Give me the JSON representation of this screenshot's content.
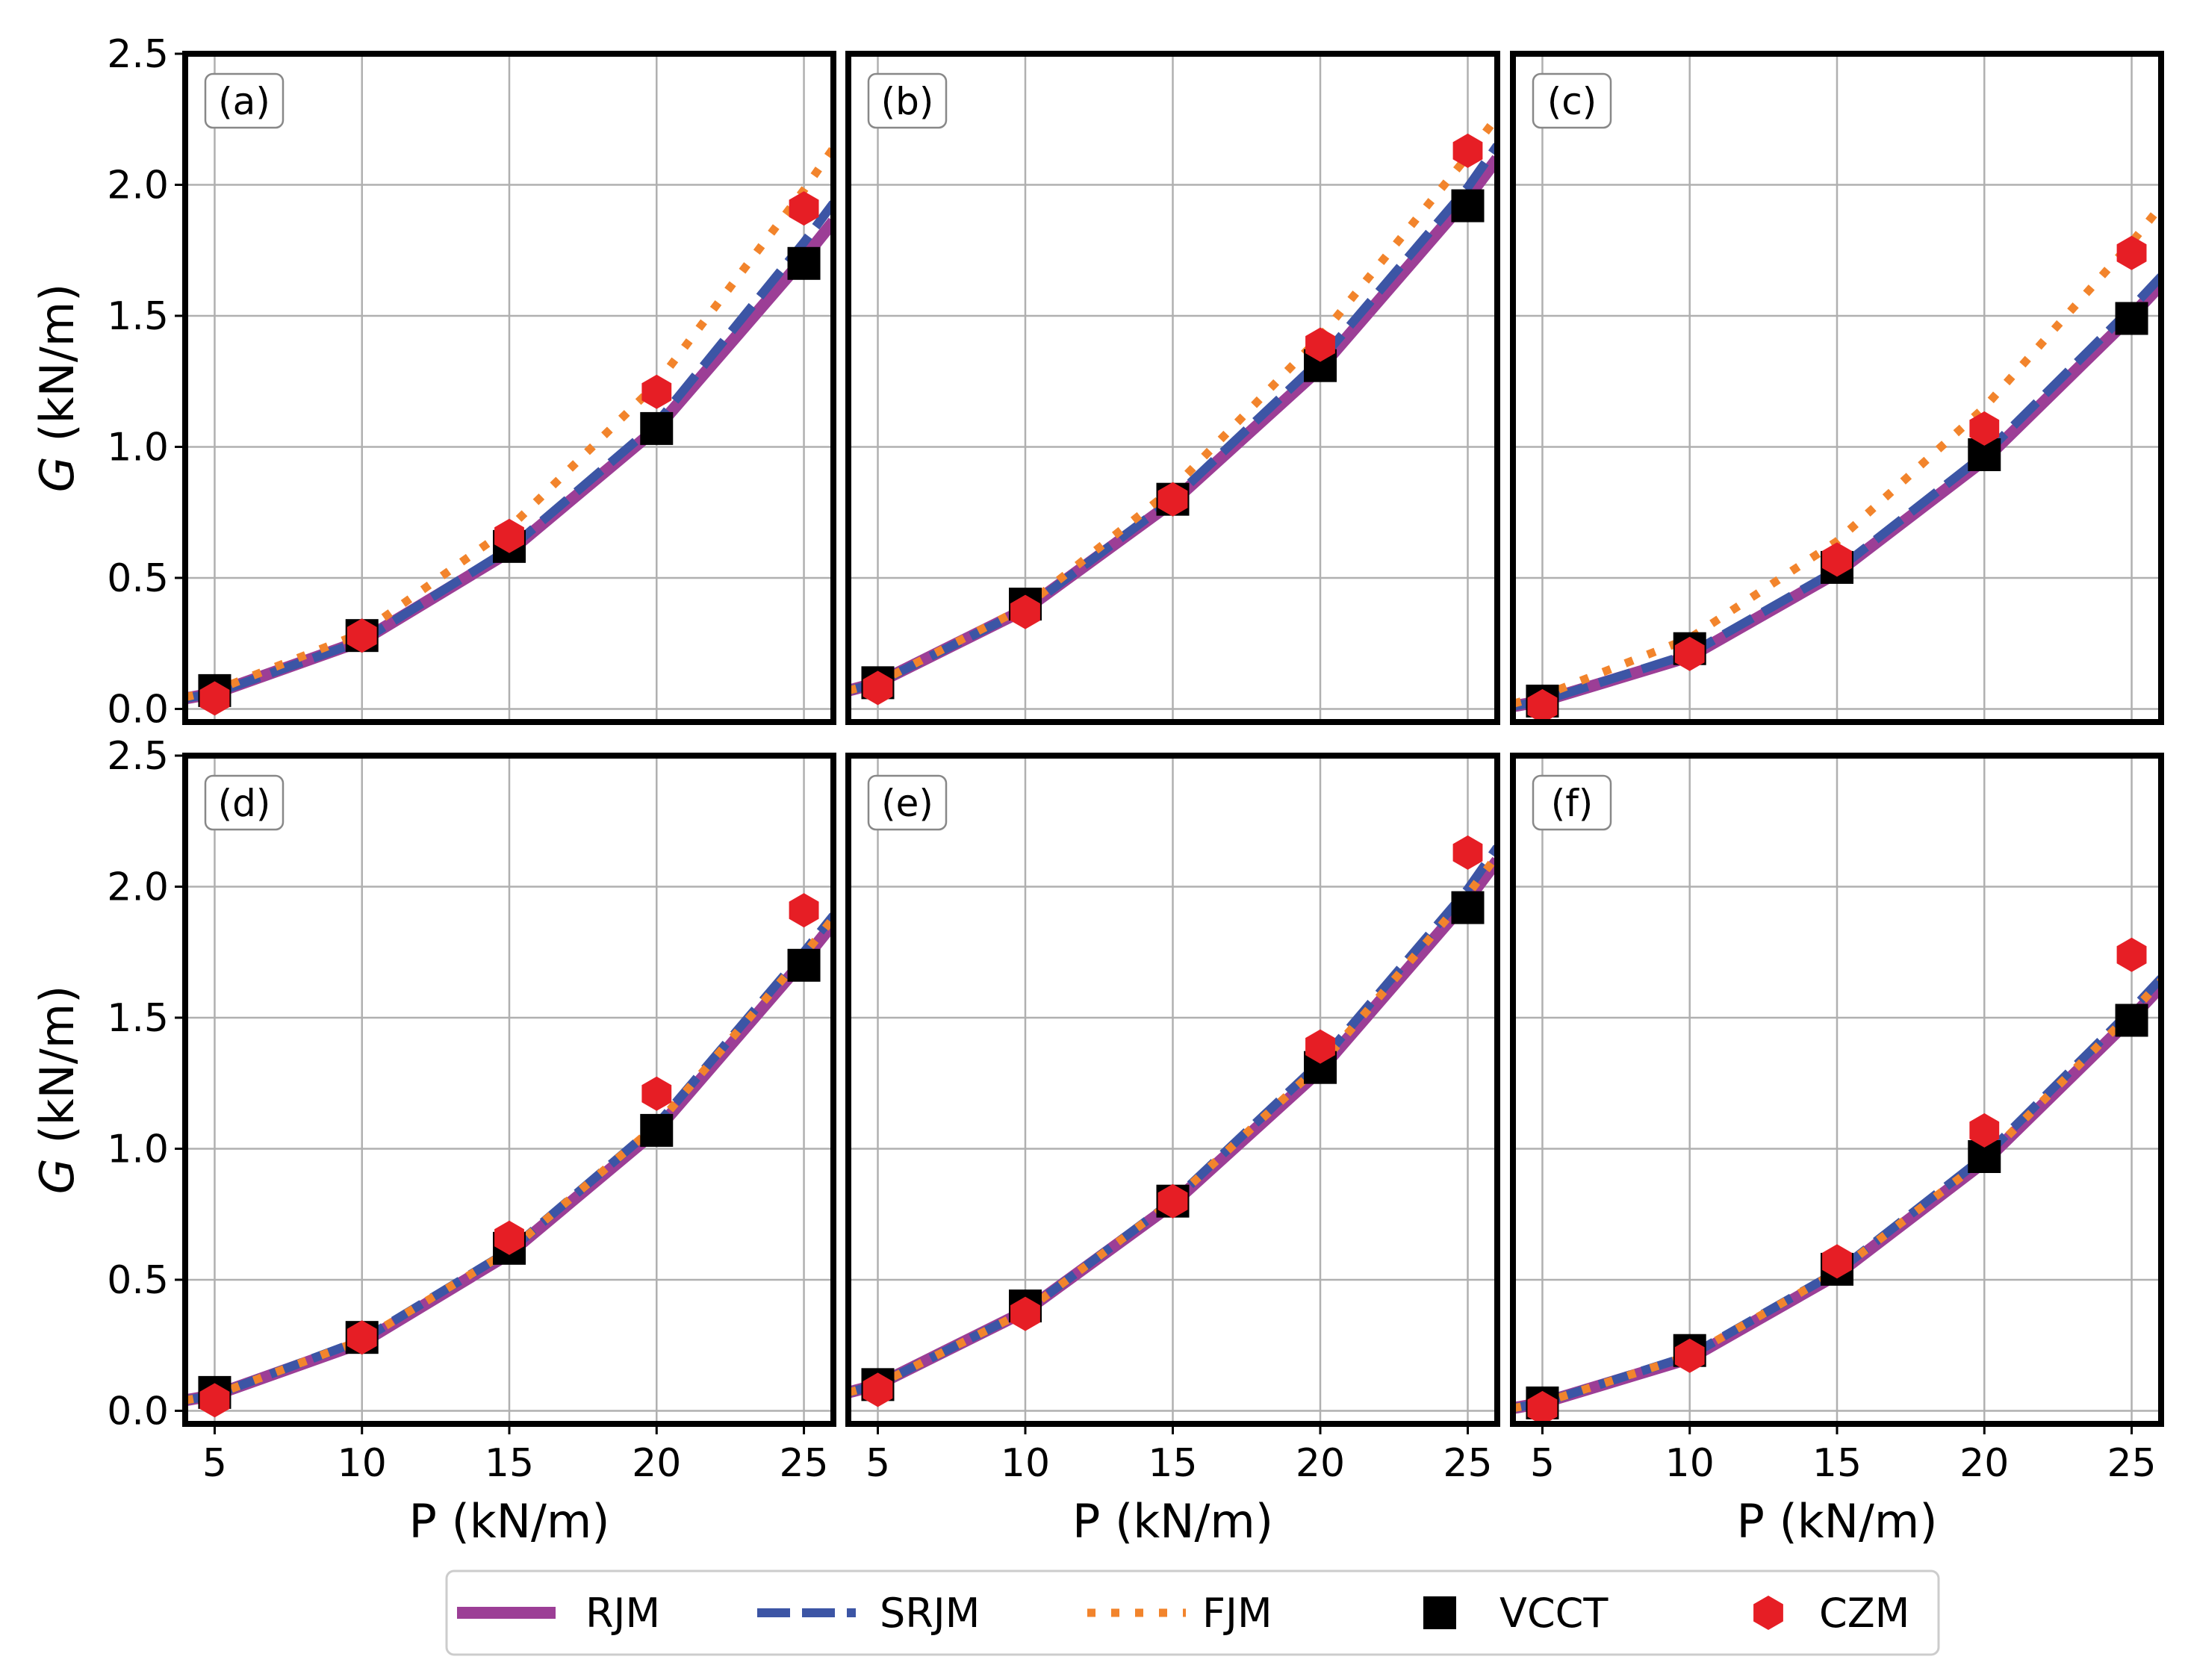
{
  "chart_data": {
    "type": "line",
    "layout": "2x3 grid of panels with shared axes",
    "xlabel": "P (kN/m)",
    "ylabel_italic": "G",
    "ylabel_units": " (kN/m)",
    "xlim": [
      4,
      26
    ],
    "ylim": [
      -0.05,
      2.5
    ],
    "xticks": [
      5,
      10,
      15,
      20,
      25
    ],
    "yticks": [
      0.0,
      0.5,
      1.0,
      1.5,
      2.0,
      2.5
    ],
    "ytick_labels": [
      "0.0",
      "0.5",
      "1.0",
      "1.5",
      "2.0",
      "2.5"
    ],
    "grid": true,
    "colors": {
      "RJM": "#9c3e96",
      "SRJM": "#3c55a5",
      "FJM": "#f2842c",
      "VCCT": "#000000",
      "CZM": "#e61e25"
    },
    "legend": {
      "placement": "bottom-center",
      "entries": [
        {
          "name": "RJM",
          "style": "solid"
        },
        {
          "name": "SRJM",
          "style": "dashed"
        },
        {
          "name": "FJM",
          "style": "dotted"
        },
        {
          "name": "VCCT",
          "style": "square-marker"
        },
        {
          "name": "CZM",
          "style": "hexagon-marker"
        }
      ]
    },
    "panels": [
      {
        "label": "(a)",
        "curves": {
          "RJM": {
            "x": [
              4,
              5,
              10,
              15,
              20,
              25,
              26
            ],
            "y": [
              0.04,
              0.06,
              0.26,
              0.6,
              1.07,
              1.72,
              1.86
            ]
          },
          "SRJM": {
            "x": [
              4,
              5,
              10,
              15,
              20,
              25,
              26
            ],
            "y": [
              0.04,
              0.06,
              0.26,
              0.61,
              1.09,
              1.78,
              1.93
            ]
          },
          "FJM": {
            "x": [
              4,
              5,
              10,
              15,
              20,
              25,
              26
            ],
            "y": [
              0.045,
              0.07,
              0.29,
              0.69,
              1.24,
              1.98,
              2.14
            ]
          }
        },
        "VCCT": {
          "x": [
            5,
            10,
            15,
            20,
            25
          ],
          "y": [
            0.07,
            0.28,
            0.62,
            1.07,
            1.7
          ]
        },
        "CZM": {
          "x": [
            5,
            10,
            15,
            20,
            25
          ],
          "y": [
            0.04,
            0.28,
            0.66,
            1.21,
            1.91
          ]
        }
      },
      {
        "label": "(b)",
        "curves": {
          "RJM": {
            "x": [
              4,
              5,
              10,
              15,
              20,
              25,
              26
            ],
            "y": [
              0.07,
              0.1,
              0.38,
              0.79,
              1.3,
              1.95,
              2.1
            ]
          },
          "SRJM": {
            "x": [
              4,
              5,
              10,
              15,
              20,
              25,
              26
            ],
            "y": [
              0.07,
              0.1,
              0.38,
              0.8,
              1.33,
              1.99,
              2.15
            ]
          },
          "FJM": {
            "x": [
              4,
              5,
              10,
              15,
              20,
              25,
              26
            ],
            "y": [
              0.07,
              0.1,
              0.39,
              0.84,
              1.42,
              2.11,
              2.26
            ]
          }
        },
        "VCCT": {
          "x": [
            5,
            10,
            15,
            20,
            25
          ],
          "y": [
            0.1,
            0.4,
            0.8,
            1.31,
            1.92
          ]
        },
        "CZM": {
          "x": [
            5,
            10,
            15,
            20,
            25
          ],
          "y": [
            0.08,
            0.37,
            0.8,
            1.39,
            2.13
          ]
        }
      },
      {
        "label": "(c)",
        "curves": {
          "RJM": {
            "x": [
              4,
              5,
              10,
              15,
              20,
              25,
              26
            ],
            "y": [
              0.01,
              0.03,
              0.2,
              0.52,
              0.95,
              1.5,
              1.62
            ]
          },
          "SRJM": {
            "x": [
              4,
              5,
              10,
              15,
              20,
              25,
              26
            ],
            "y": [
              0.01,
              0.03,
              0.21,
              0.53,
              0.97,
              1.53,
              1.65
            ]
          },
          "FJM": {
            "x": [
              4,
              5,
              10,
              15,
              20,
              25,
              26
            ],
            "y": [
              0.02,
              0.05,
              0.27,
              0.64,
              1.15,
              1.78,
              1.92
            ]
          }
        },
        "VCCT": {
          "x": [
            5,
            10,
            15,
            20,
            25
          ],
          "y": [
            0.03,
            0.23,
            0.54,
            0.97,
            1.49
          ]
        },
        "CZM": {
          "x": [
            5,
            10,
            15,
            20,
            25
          ],
          "y": [
            0.01,
            0.21,
            0.57,
            1.07,
            1.74
          ]
        }
      },
      {
        "label": "(d)",
        "curves": {
          "RJM": {
            "x": [
              4,
              5,
              10,
              15,
              20,
              25,
              26
            ],
            "y": [
              0.04,
              0.06,
              0.26,
              0.6,
              1.07,
              1.72,
              1.86
            ]
          },
          "SRJM": {
            "x": [
              4,
              5,
              10,
              15,
              20,
              25,
              26
            ],
            "y": [
              0.04,
              0.06,
              0.27,
              0.61,
              1.09,
              1.75,
              1.89
            ]
          },
          "FJM": {
            "x": [
              4,
              5,
              10,
              15,
              20,
              25,
              26
            ],
            "y": [
              0.04,
              0.06,
              0.27,
              0.61,
              1.09,
              1.74,
              1.88
            ]
          }
        },
        "VCCT": {
          "x": [
            5,
            10,
            15,
            20,
            25
          ],
          "y": [
            0.07,
            0.28,
            0.62,
            1.07,
            1.7
          ]
        },
        "CZM": {
          "x": [
            5,
            10,
            15,
            20,
            25
          ],
          "y": [
            0.04,
            0.28,
            0.66,
            1.21,
            1.91
          ]
        }
      },
      {
        "label": "(e)",
        "curves": {
          "RJM": {
            "x": [
              4,
              5,
              10,
              15,
              20,
              25,
              26
            ],
            "y": [
              0.07,
              0.1,
              0.38,
              0.79,
              1.3,
              1.95,
              2.1
            ]
          },
          "SRJM": {
            "x": [
              4,
              5,
              10,
              15,
              20,
              25,
              26
            ],
            "y": [
              0.07,
              0.1,
              0.38,
              0.8,
              1.33,
              1.99,
              2.15
            ]
          },
          "FJM": {
            "x": [
              4,
              5,
              10,
              15,
              20,
              25,
              26
            ],
            "y": [
              0.07,
              0.1,
              0.38,
              0.8,
              1.32,
              1.97,
              2.12
            ]
          }
        },
        "VCCT": {
          "x": [
            5,
            10,
            15,
            20,
            25
          ],
          "y": [
            0.1,
            0.4,
            0.8,
            1.31,
            1.92
          ]
        },
        "CZM": {
          "x": [
            5,
            10,
            15,
            20,
            25
          ],
          "y": [
            0.08,
            0.37,
            0.8,
            1.39,
            2.13
          ]
        }
      },
      {
        "label": "(f)",
        "curves": {
          "RJM": {
            "x": [
              4,
              5,
              10,
              15,
              20,
              25,
              26
            ],
            "y": [
              0.01,
              0.03,
              0.2,
              0.52,
              0.95,
              1.5,
              1.62
            ]
          },
          "SRJM": {
            "x": [
              4,
              5,
              10,
              15,
              20,
              25,
              26
            ],
            "y": [
              0.01,
              0.03,
              0.21,
              0.53,
              0.97,
              1.53,
              1.65
            ]
          },
          "FJM": {
            "x": [
              4,
              5,
              10,
              15,
              20,
              25,
              26
            ],
            "y": [
              0.01,
              0.03,
              0.21,
              0.53,
              0.96,
              1.52,
              1.64
            ]
          }
        },
        "VCCT": {
          "x": [
            5,
            10,
            15,
            20,
            25
          ],
          "y": [
            0.03,
            0.23,
            0.54,
            0.97,
            1.49
          ]
        },
        "CZM": {
          "x": [
            5,
            10,
            15,
            20,
            25
          ],
          "y": [
            0.01,
            0.21,
            0.57,
            1.07,
            1.74
          ]
        }
      }
    ]
  }
}
